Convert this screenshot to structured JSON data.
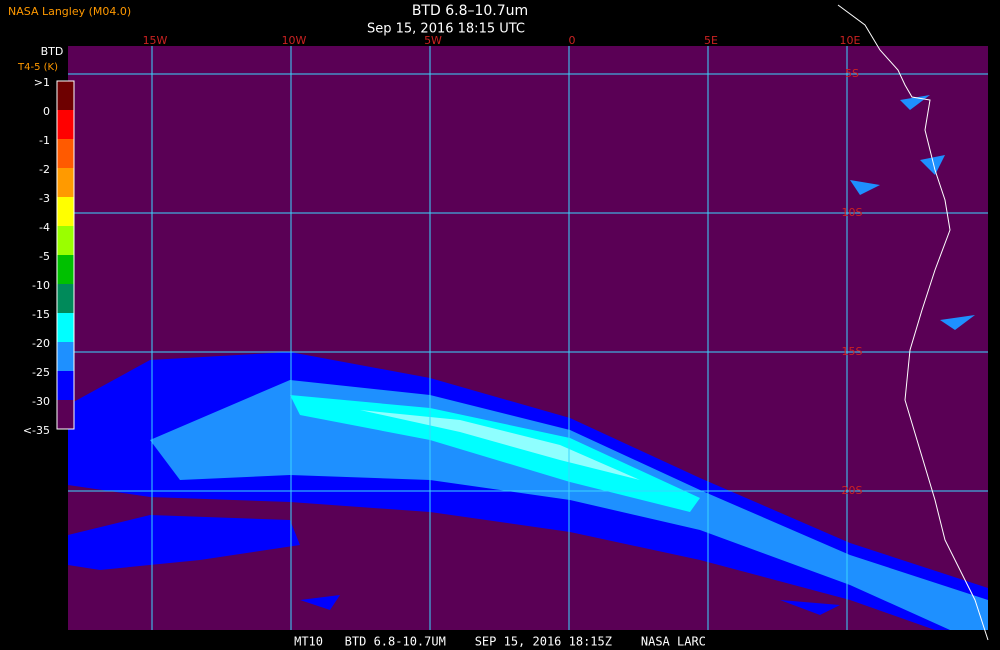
{
  "header": {
    "source": "NASA Langley (M04.0)",
    "title": "BTD 6.8–10.7um",
    "datetime": "Sep 15, 2016 18:15 UTC"
  },
  "colorbar": {
    "title": "BTD",
    "units": "T4-5 (K)",
    "labels": [
      ">1",
      "0",
      "-1",
      "-2",
      "-3",
      "-4",
      "-5",
      "-10",
      "-15",
      "-20",
      "-25",
      "-30",
      "<-35"
    ],
    "colors": [
      "#6e0000",
      "#ff0000",
      "#ff5a00",
      "#ff9a00",
      "#ffff00",
      "#9aff00",
      "#00c000",
      "#008a5a",
      "#00ffff",
      "#1e90ff",
      "#0000ff",
      "#5a0055"
    ]
  },
  "map": {
    "lon_labels": [
      "15W",
      "10W",
      "5W",
      "0",
      "5E",
      "10E"
    ],
    "lat_labels": [
      "5S",
      "10S",
      "15S",
      "20S"
    ]
  },
  "footer": "MT10   BTD 6.8-10.7UM    SEP 15, 2016 18:15Z    NASA LARC"
}
